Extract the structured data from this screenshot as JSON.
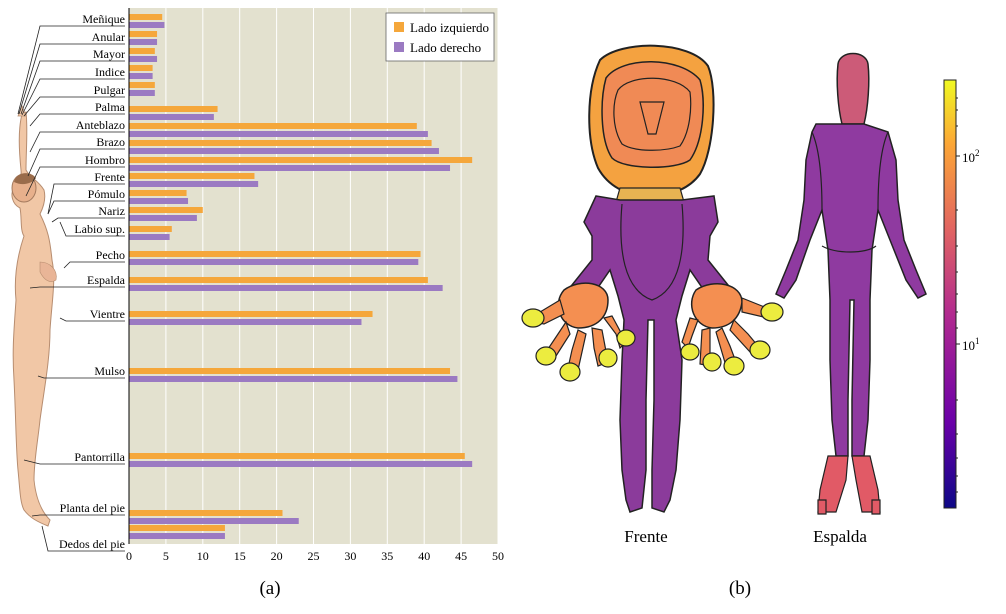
{
  "panel_a_caption": "(a)",
  "panel_b_caption": "(b)",
  "chart_data": {
    "type": "bar",
    "orientation": "horizontal",
    "categories": [
      "Meñique",
      "Anular",
      "Mayor",
      "Indice",
      "Pulgar",
      "Palma",
      "Anteblazo",
      "Brazo",
      "Hombro",
      "Frente",
      "Pómulo",
      "Nariz",
      "Labio sup.",
      "Pecho",
      "Espalda",
      "Vientre",
      "Mulso",
      "Pantorrilla",
      "Planta del pie",
      "Dedos del pie"
    ],
    "series": [
      {
        "name": "Lado izquierdo",
        "color": "#f5a73b",
        "values": [
          4.5,
          3.8,
          3.5,
          3.2,
          3.5,
          12.0,
          39.0,
          41.0,
          46.5,
          17.0,
          7.8,
          10.0,
          5.8,
          39.5,
          40.5,
          33.0,
          43.5,
          45.5,
          20.8,
          13.0
        ]
      },
      {
        "name": "Lado derecho",
        "color": "#9b7ac2",
        "values": [
          4.8,
          3.8,
          3.8,
          3.2,
          3.5,
          11.5,
          40.5,
          42.0,
          43.5,
          17.5,
          8.0,
          9.2,
          5.5,
          39.2,
          42.5,
          31.5,
          44.5,
          46.5,
          23.0,
          13.0
        ]
      }
    ],
    "xlim": [
      0,
      50
    ],
    "xticks": [
      0,
      5,
      10,
      15,
      20,
      25,
      30,
      35,
      40,
      45,
      50
    ],
    "grid": true,
    "legend_position": "top-right",
    "plot_background": "#e3e1cf"
  },
  "body_map": {
    "labels": [
      "Frente",
      "Espalda"
    ],
    "colorbar": {
      "scale": "log",
      "ticks": [
        "10",
        "10"
      ],
      "tick_exponents": [
        "2",
        "1"
      ],
      "colormap": [
        "#0d0887",
        "#6a00a8",
        "#b12a90",
        "#e16462",
        "#fca636",
        "#f0f921"
      ]
    },
    "region_colors": {
      "head_front": "#f4a240",
      "face_inner": "#f08a55",
      "neck": "#e7b352",
      "torso": "#8b3b9b",
      "hands": "#f48f51",
      "fingertips": "#ecec3f",
      "back_head": "#cc5b78",
      "back_body": "#8f3aa0",
      "feet": "#e15a66"
    }
  }
}
